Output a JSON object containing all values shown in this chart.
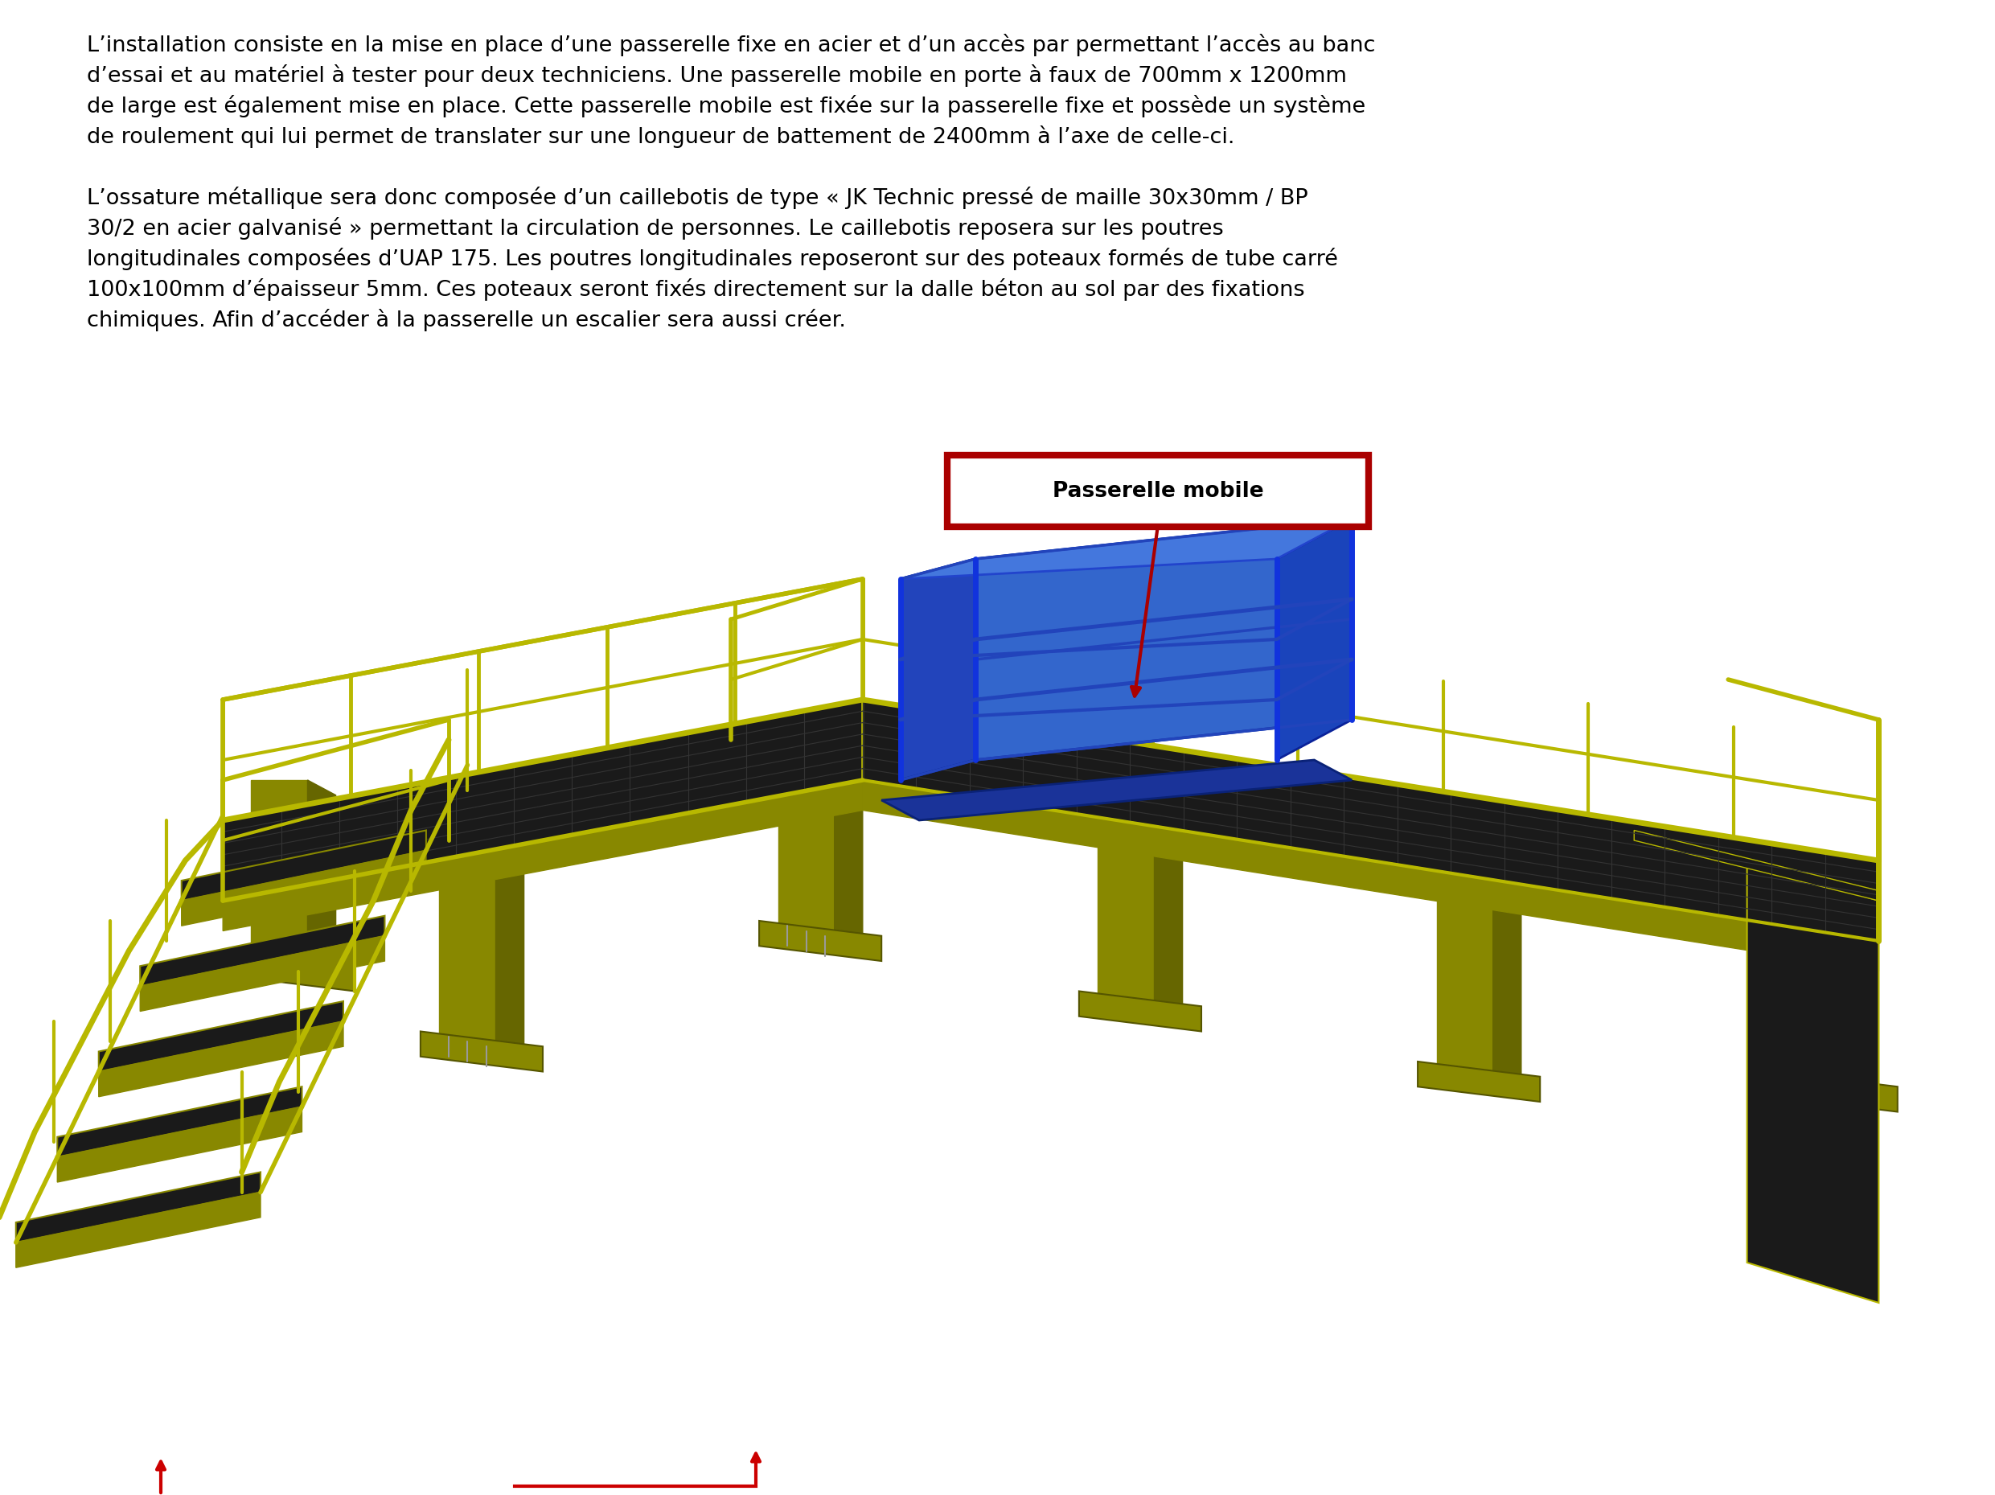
{
  "bg_color": "#ffffff",
  "text_paragraph1_lines": [
    "L’installation consiste en la mise en place d’une passerelle fixe en acier et d’un accès par permettant l’accès au banc",
    "d’essai et au matériel à tester pour deux techniciens. Une passerelle mobile en porte à faux de 700mm x 1200mm",
    "de large est également mise en place. Cette passerelle mobile est fixée sur la passerelle fixe et possède un système",
    "de roulement qui lui permet de translater sur une longueur de battement de 2400mm à l’axe de celle-ci."
  ],
  "text_paragraph2_lines": [
    "L’ossature métallique sera donc composée d’un caillebotis de type « JK Technic pressé de maille 30x30mm / BP",
    "30/2 en acier galvanisé » permettant la circulation de personnes. Le caillebotis reposera sur les poutres",
    "longitudinales composées d’UAP 175. Les poutres longitudinales reposeront sur des poteaux formés de tube carré",
    "100x100mm d’épaisseur 5mm. Ces poteaux seront fixés directement sur la dalle béton au sol par des fixations",
    "chimiques. Afin d’accéder à la passerelle un escalier sera aussi créer."
  ],
  "annotation_label": "Passerelle mobile",
  "annotation_box_color": "#ffffff",
  "annotation_box_border": "#aa0000",
  "annotation_arrow_color": "#aa0000",
  "text_color": "#000000",
  "paragraph_fontsize": 19.5,
  "annotation_text_fontsize": 19,
  "yellow_green": "#b8b800",
  "yellow_dark": "#888800",
  "yellow_light": "#cccc20",
  "dark_grating": "#1a1a1a",
  "blue_main": "#2244bb",
  "blue_light": "#3366cc",
  "blue_dark": "#0a2299",
  "blue_platform": "#3355bb"
}
